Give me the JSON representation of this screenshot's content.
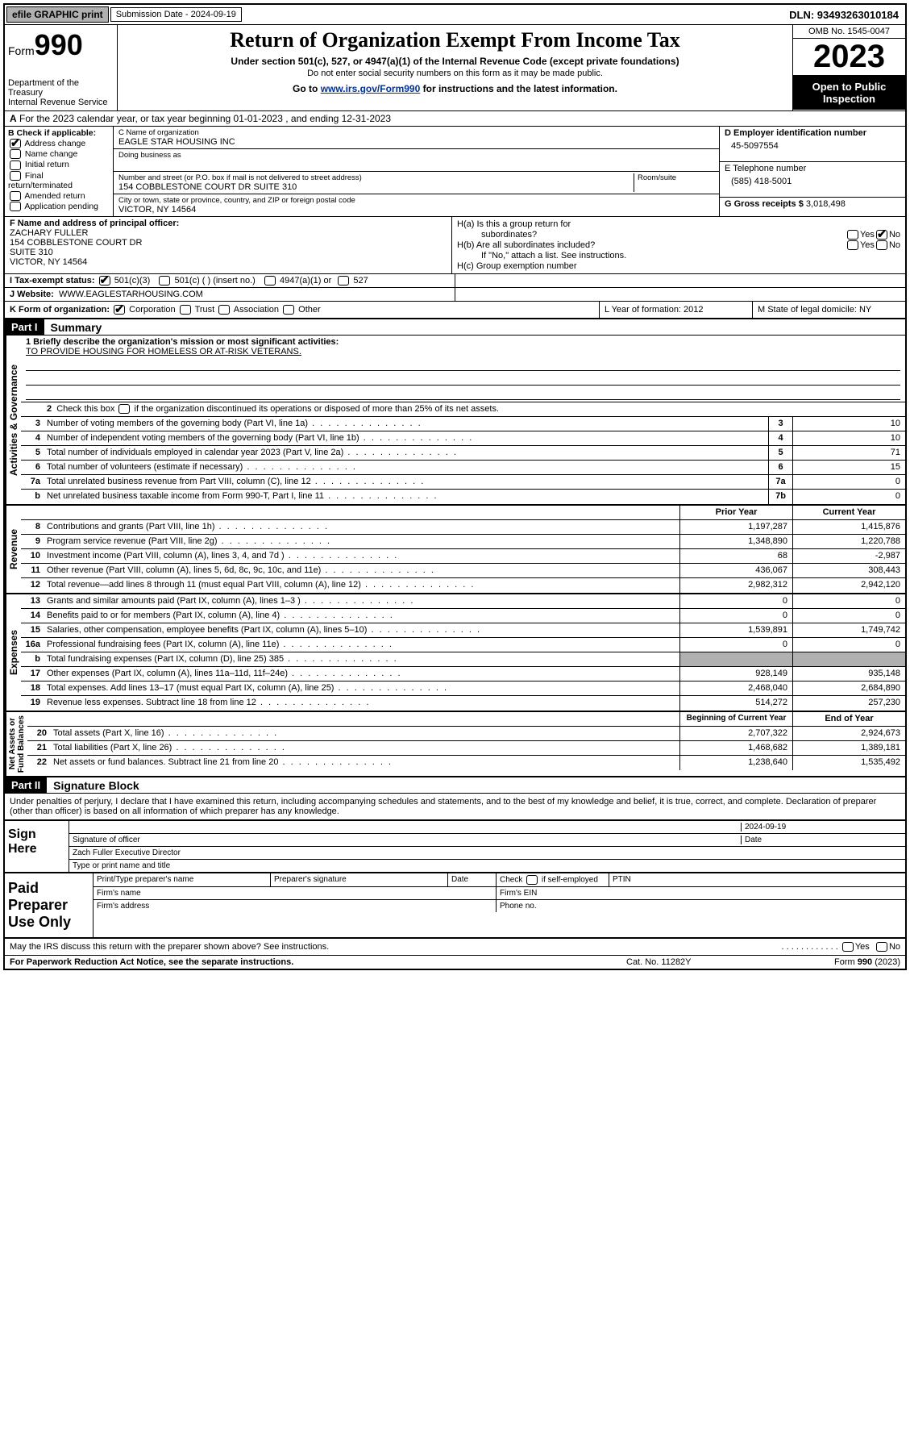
{
  "topbar": {
    "efile": "efile GRAPHIC print",
    "sub_label": "Submission Date - 2024-09-19",
    "dln_label": "DLN: 93493263010184"
  },
  "header": {
    "form_label": "Form",
    "form_num": "990",
    "dept": "Department of the Treasury\nInternal Revenue Service",
    "title": "Return of Organization Exempt From Income Tax",
    "subtitle": "Under section 501(c), 527, or 4947(a)(1) of the Internal Revenue Code (except private foundations)",
    "subtext1": "Do not enter social security numbers on this form as it may be made public.",
    "goto": "Go to www.irs.gov/Form990 for instructions and the latest information.",
    "omb": "OMB No. 1545-0047",
    "year": "2023",
    "open": "Open to Public Inspection"
  },
  "line_a": "For the 2023 calendar year, or tax year beginning 01-01-2023    , and ending 12-31-2023",
  "col_b": {
    "hdr": "B Check if applicable:",
    "items": [
      "Address change",
      "Name change",
      "Initial return",
      "Final return/terminated",
      "Amended return",
      "Application pending"
    ],
    "checked": [
      true,
      false,
      false,
      false,
      false,
      false
    ]
  },
  "col_c": {
    "name_lbl": "C Name of organization",
    "name": "EAGLE STAR HOUSING INC",
    "dba_lbl": "Doing business as",
    "addr_lbl": "Number and street (or P.O. box if mail is not delivered to street address)",
    "addr": "154 COBBLESTONE COURT DR SUITE 310",
    "room_lbl": "Room/suite",
    "city_lbl": "City or town, state or province, country, and ZIP or foreign postal code",
    "city": "VICTOR, NY  14564"
  },
  "col_d": {
    "ein_lbl": "D Employer identification number",
    "ein": "45-5097554",
    "tel_lbl": "E Telephone number",
    "tel": "(585) 418-5001",
    "gross_lbl": "G Gross receipts $",
    "gross": "3,018,498"
  },
  "row_f": {
    "lbl": "F  Name and address of principal officer:",
    "name": "ZACHARY FULLER",
    "addr1": "154 COBBLESTONE COURT DR",
    "addr2": "SUITE 310",
    "addr3": "VICTOR, NY  14564"
  },
  "row_h": {
    "ha": "H(a)  Is this a group return for",
    "ha2": "subordinates?",
    "hb": "H(b)  Are all subordinates included?",
    "hb_note": "If \"No,\" attach a list. See instructions.",
    "hc": "H(c)  Group exemption number"
  },
  "row_i": {
    "lbl": "I   Tax-exempt status:",
    "opts": [
      "501(c)(3)",
      "501(c) (  ) (insert no.)",
      "4947(a)(1) or",
      "527"
    ]
  },
  "row_j": {
    "lbl": "J   Website:",
    "val": "WWW.EAGLESTARHOUSING.COM"
  },
  "row_k": {
    "lbl": "K Form of organization:",
    "opts": [
      "Corporation",
      "Trust",
      "Association",
      "Other"
    ],
    "year_lbl": "L Year of formation: 2012",
    "state_lbl": "M State of legal domicile: NY"
  },
  "part1": {
    "hdr": "Part I",
    "title": "Summary",
    "line1_lbl": "1   Briefly describe the organization's mission or most significant activities:",
    "line1_val": "TO PROVIDE HOUSING FOR HOMELESS OR AT-RISK VETERANS.",
    "line2": "2   Check this box      if the organization discontinued its operations or disposed of more than 25% of its net assets.",
    "govern_lines": [
      {
        "n": "3",
        "txt": "Number of voting members of the governing body (Part VI, line 1a)",
        "box": "3",
        "val": "10"
      },
      {
        "n": "4",
        "txt": "Number of independent voting members of the governing body (Part VI, line 1b)",
        "box": "4",
        "val": "10"
      },
      {
        "n": "5",
        "txt": "Total number of individuals employed in calendar year 2023 (Part V, line 2a)",
        "box": "5",
        "val": "71"
      },
      {
        "n": "6",
        "txt": "Total number of volunteers (estimate if necessary)",
        "box": "6",
        "val": "15"
      },
      {
        "n": "7a",
        "txt": "Total unrelated business revenue from Part VIII, column (C), line 12",
        "box": "7a",
        "val": "0"
      },
      {
        "n": "b",
        "txt": "Net unrelated business taxable income from Form 990-T, Part I, line 11",
        "box": "7b",
        "val": "0"
      }
    ],
    "rev_hdr": {
      "prior": "Prior Year",
      "curr": "Current Year"
    },
    "revenue_lines": [
      {
        "n": "8",
        "txt": "Contributions and grants (Part VIII, line 1h)",
        "p": "1,197,287",
        "c": "1,415,876"
      },
      {
        "n": "9",
        "txt": "Program service revenue (Part VIII, line 2g)",
        "p": "1,348,890",
        "c": "1,220,788"
      },
      {
        "n": "10",
        "txt": "Investment income (Part VIII, column (A), lines 3, 4, and 7d )",
        "p": "68",
        "c": "-2,987"
      },
      {
        "n": "11",
        "txt": "Other revenue (Part VIII, column (A), lines 5, 6d, 8c, 9c, 10c, and 11e)",
        "p": "436,067",
        "c": "308,443"
      },
      {
        "n": "12",
        "txt": "Total revenue—add lines 8 through 11 (must equal Part VIII, column (A), line 12)",
        "p": "2,982,312",
        "c": "2,942,120"
      }
    ],
    "expense_lines": [
      {
        "n": "13",
        "txt": "Grants and similar amounts paid (Part IX, column (A), lines 1–3 )",
        "p": "0",
        "c": "0"
      },
      {
        "n": "14",
        "txt": "Benefits paid to or for members (Part IX, column (A), line 4)",
        "p": "0",
        "c": "0"
      },
      {
        "n": "15",
        "txt": "Salaries, other compensation, employee benefits (Part IX, column (A), lines 5–10)",
        "p": "1,539,891",
        "c": "1,749,742"
      },
      {
        "n": "16a",
        "txt": "Professional fundraising fees (Part IX, column (A), line 11e)",
        "p": "0",
        "c": "0"
      },
      {
        "n": "b",
        "txt": "Total fundraising expenses (Part IX, column (D), line 25) 385",
        "p": "",
        "c": "",
        "shade": true
      },
      {
        "n": "17",
        "txt": "Other expenses (Part IX, column (A), lines 11a–11d, 11f–24e)",
        "p": "928,149",
        "c": "935,148"
      },
      {
        "n": "18",
        "txt": "Total expenses. Add lines 13–17 (must equal Part IX, column (A), line 25)",
        "p": "2,468,040",
        "c": "2,684,890"
      },
      {
        "n": "19",
        "txt": "Revenue less expenses. Subtract line 18 from line 12",
        "p": "514,272",
        "c": "257,230"
      }
    ],
    "net_hdr": {
      "beg": "Beginning of Current Year",
      "end": "End of Year"
    },
    "net_lines": [
      {
        "n": "20",
        "txt": "Total assets (Part X, line 16)",
        "p": "2,707,322",
        "c": "2,924,673"
      },
      {
        "n": "21",
        "txt": "Total liabilities (Part X, line 26)",
        "p": "1,468,682",
        "c": "1,389,181"
      },
      {
        "n": "22",
        "txt": "Net assets or fund balances. Subtract line 21 from line 20",
        "p": "1,238,640",
        "c": "1,535,492"
      }
    ]
  },
  "part2": {
    "hdr": "Part II",
    "title": "Signature Block",
    "decl": "Under penalties of perjury, I declare that I have examined this return, including accompanying schedules and statements, and to the best of my knowledge and belief, it is true, correct, and complete. Declaration of preparer (other than officer) is based on all information of which preparer has any knowledge.",
    "sign_here": "Sign Here",
    "sig_officer": "Signature of officer",
    "sig_name": "Zach Fuller  Executive Director",
    "sig_type": "Type or print name and title",
    "sig_date_lbl": "Date",
    "sig_date": "2024-09-19",
    "paid": "Paid Preparer Use Only",
    "prep_name": "Print/Type preparer's name",
    "prep_sig": "Preparer's signature",
    "prep_date": "Date",
    "prep_check": "Check        if self-employed",
    "ptin": "PTIN",
    "firm_name": "Firm's name",
    "firm_ein": "Firm's EIN",
    "firm_addr": "Firm's address",
    "phone": "Phone no.",
    "discuss": "May the IRS discuss this return with the preparer shown above? See instructions."
  },
  "footer": {
    "pra": "For Paperwork Reduction Act Notice, see the separate instructions.",
    "cat": "Cat. No. 11282Y",
    "form": "Form 990 (2023)"
  },
  "labels": {
    "yes": "Yes",
    "no": "No"
  }
}
